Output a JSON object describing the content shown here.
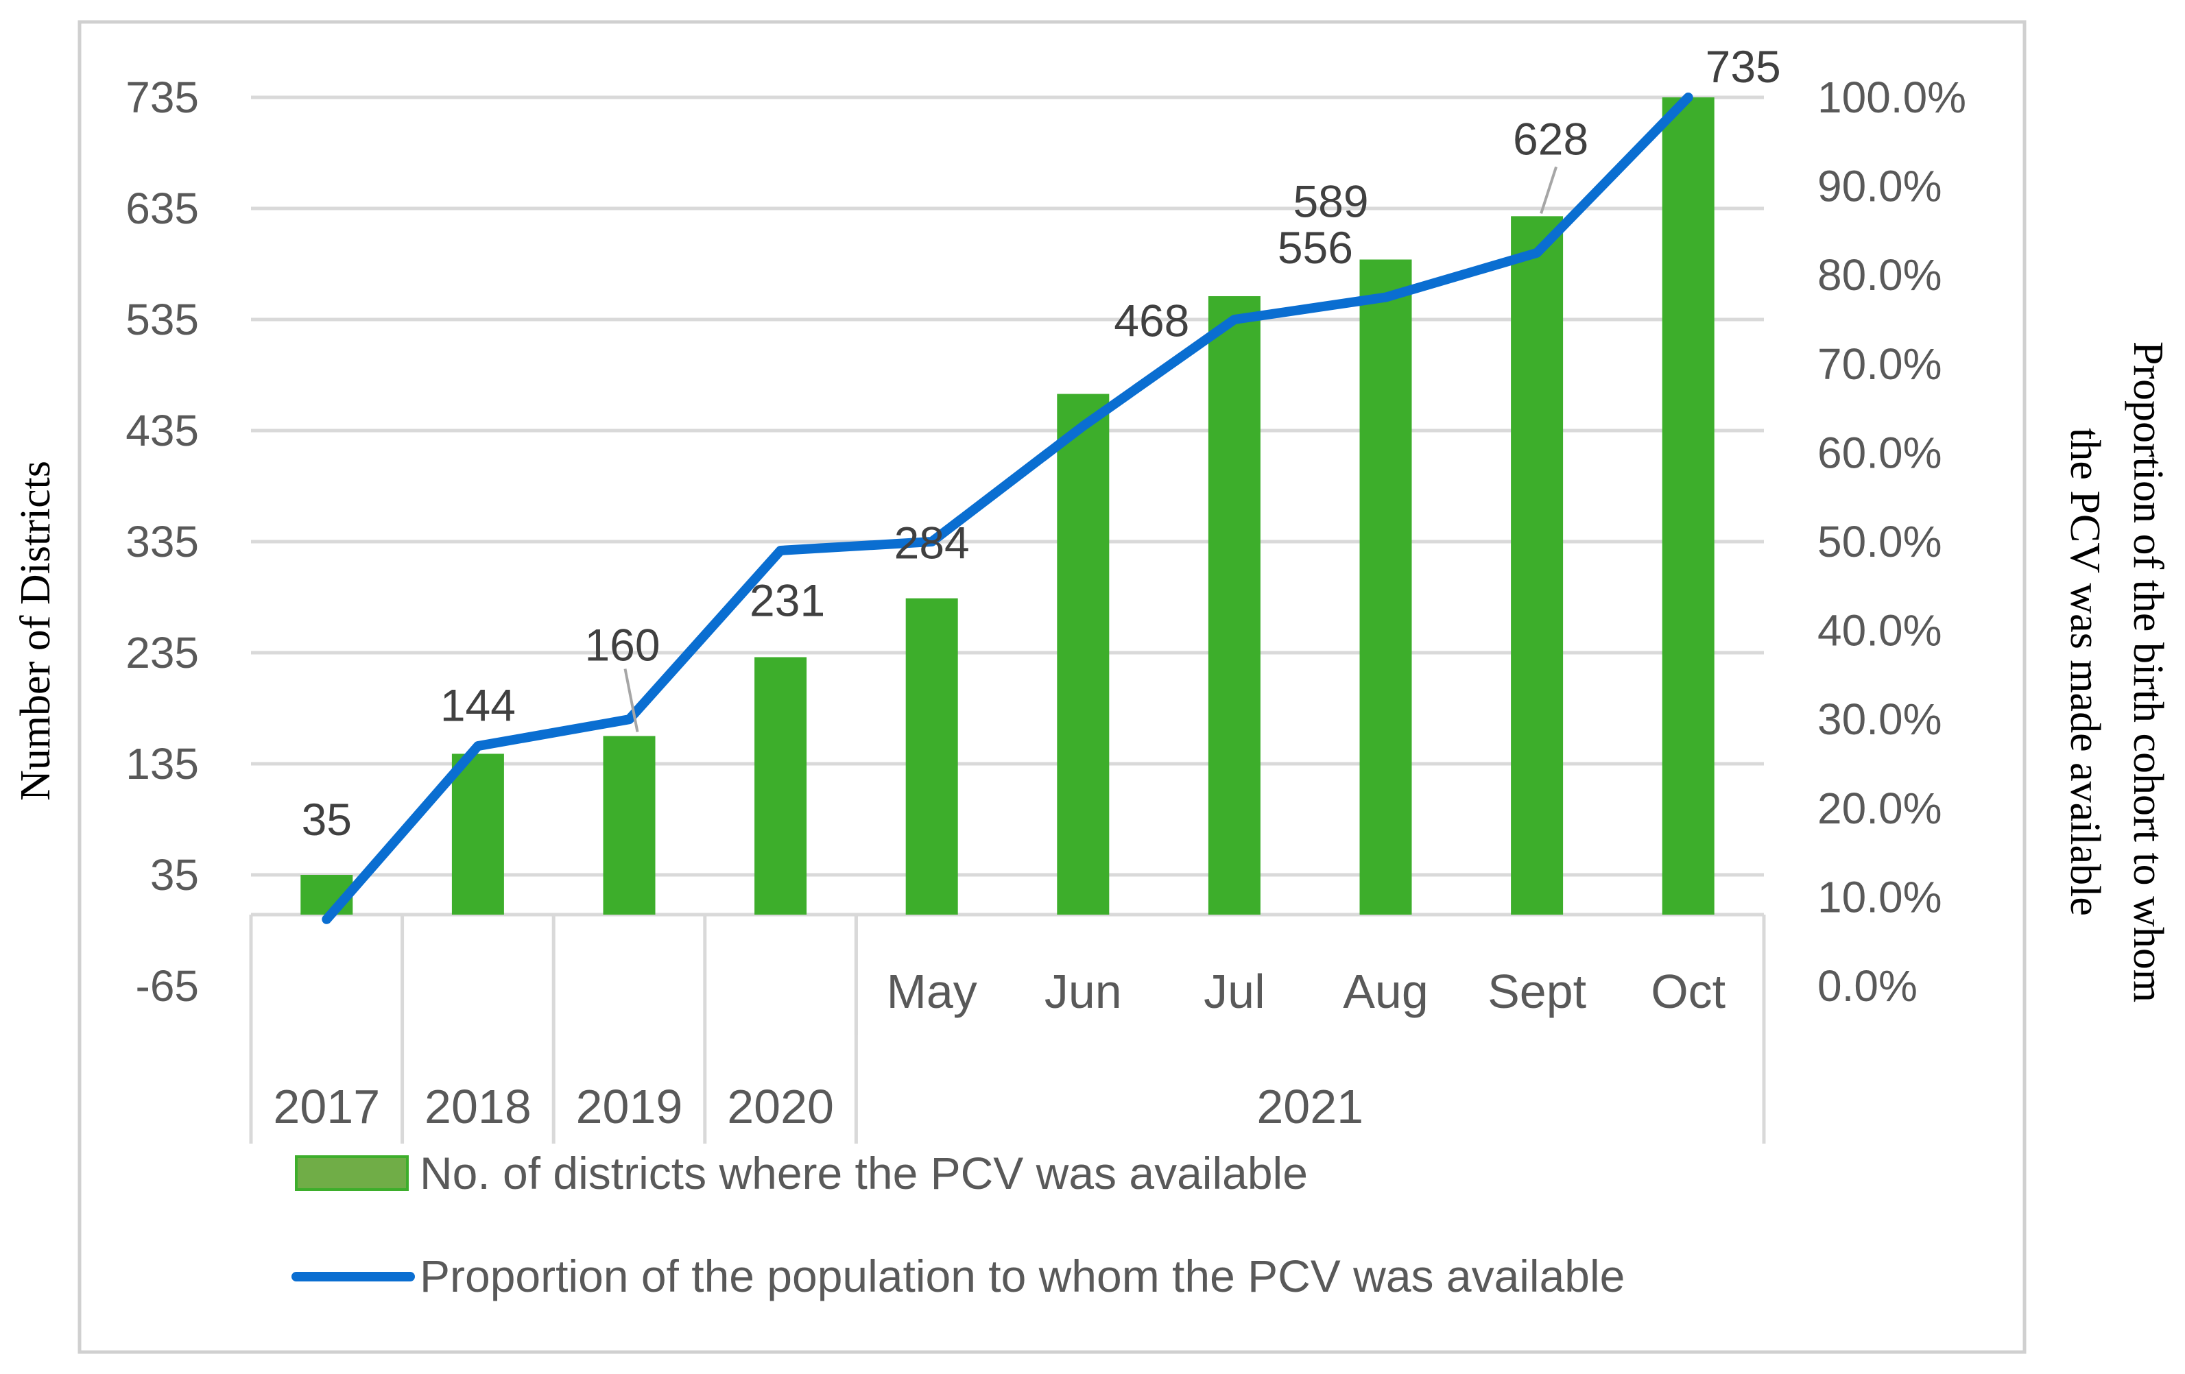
{
  "chart_data": {
    "type": "bar+line",
    "categories": [
      {
        "year": "2017",
        "month": ""
      },
      {
        "year": "2018",
        "month": ""
      },
      {
        "year": "2019",
        "month": ""
      },
      {
        "year": "2020",
        "month": ""
      },
      {
        "year": "2021",
        "month": "May"
      },
      {
        "year": "2021",
        "month": "Jun"
      },
      {
        "year": "2021",
        "month": "Jul"
      },
      {
        "year": "2021",
        "month": "Aug"
      },
      {
        "year": "2021",
        "month": "Sept"
      },
      {
        "year": "2021",
        "month": "Oct"
      }
    ],
    "year_groups": [
      {
        "label": "2017",
        "start": 0,
        "end": 0
      },
      {
        "label": "2018",
        "start": 1,
        "end": 1
      },
      {
        "label": "2019",
        "start": 2,
        "end": 2
      },
      {
        "label": "2020",
        "start": 3,
        "end": 3
      },
      {
        "label": "2021",
        "start": 4,
        "end": 9
      }
    ],
    "series": [
      {
        "name": "No. of districts where the PCV was available",
        "kind": "bar",
        "axis": "left",
        "color": "#3dae2b",
        "values": [
          35,
          144,
          160,
          231,
          284,
          468,
          556,
          589,
          628,
          735
        ],
        "labels": [
          "35",
          "144",
          "160",
          "231",
          "284",
          "468",
          "556",
          "589",
          "628",
          "735"
        ]
      },
      {
        "name": "Proportion of the population to whom the PCV was available",
        "kind": "line",
        "axis": "right",
        "color": "#0a6ed1",
        "values": [
          7.5,
          27.0,
          30.0,
          49.0,
          50.0,
          63.0,
          75.0,
          77.5,
          82.5,
          100.0
        ]
      }
    ],
    "y_left": {
      "title": "Number of Districts",
      "ticks": [
        "735",
        "635",
        "535",
        "435",
        "335",
        "235",
        "135",
        "35",
        "-65"
      ],
      "min": -65,
      "max": 735
    },
    "y_right": {
      "title_line1": "Proportion of the birth cohort to whom",
      "title_line2": "the PCV was made available",
      "ticks": [
        "100.0%",
        "90.0%",
        "80.0%",
        "70.0%",
        "60.0%",
        "50.0%",
        "40.0%",
        "30.0%",
        "20.0%",
        "10.0%",
        "0.0%"
      ],
      "min": 0,
      "max": 100
    },
    "legend": [
      {
        "label": "No. of districts where the PCV was available",
        "kind": "bar"
      },
      {
        "label": "Proportion of the population to whom the PCV was available",
        "kind": "line"
      }
    ],
    "legend_position": "bottom",
    "grid": true
  }
}
